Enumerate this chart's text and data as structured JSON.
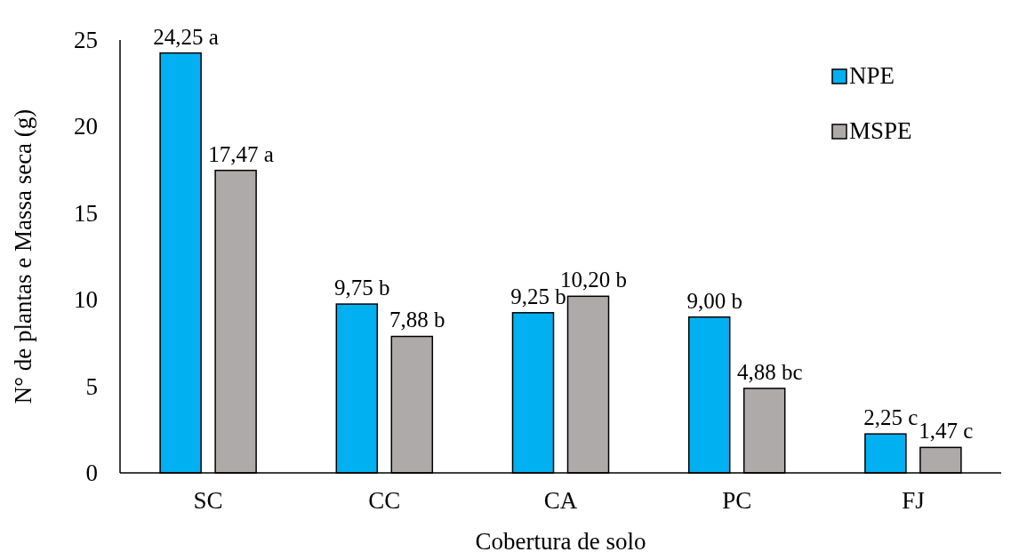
{
  "chart_data": {
    "type": "bar",
    "xlabel": "Cobertura de solo",
    "ylabel": "N° de plantas e Massa seca (g)",
    "categories": [
      "SC",
      "CC",
      "CA",
      "PC",
      "FJ"
    ],
    "series": [
      {
        "name": "NPE",
        "color": "#00b0f0",
        "values": [
          24.25,
          9.75,
          9.25,
          9.0,
          2.25
        ],
        "value_labels": [
          "24,25 a",
          "9,75 b",
          "9,25 b",
          "9,00 b",
          "2,25 c"
        ]
      },
      {
        "name": "MSPE",
        "color": "#aeaaaa",
        "values": [
          17.47,
          7.88,
          10.2,
          4.88,
          1.47
        ],
        "value_labels": [
          "17,47 a",
          "7,88 b",
          "10,20 b",
          "4,88 bc",
          "1,47 c"
        ]
      }
    ],
    "ylim": [
      0,
      25
    ],
    "yticks": [
      0,
      5,
      10,
      15,
      20,
      25
    ],
    "legend": "top right"
  }
}
